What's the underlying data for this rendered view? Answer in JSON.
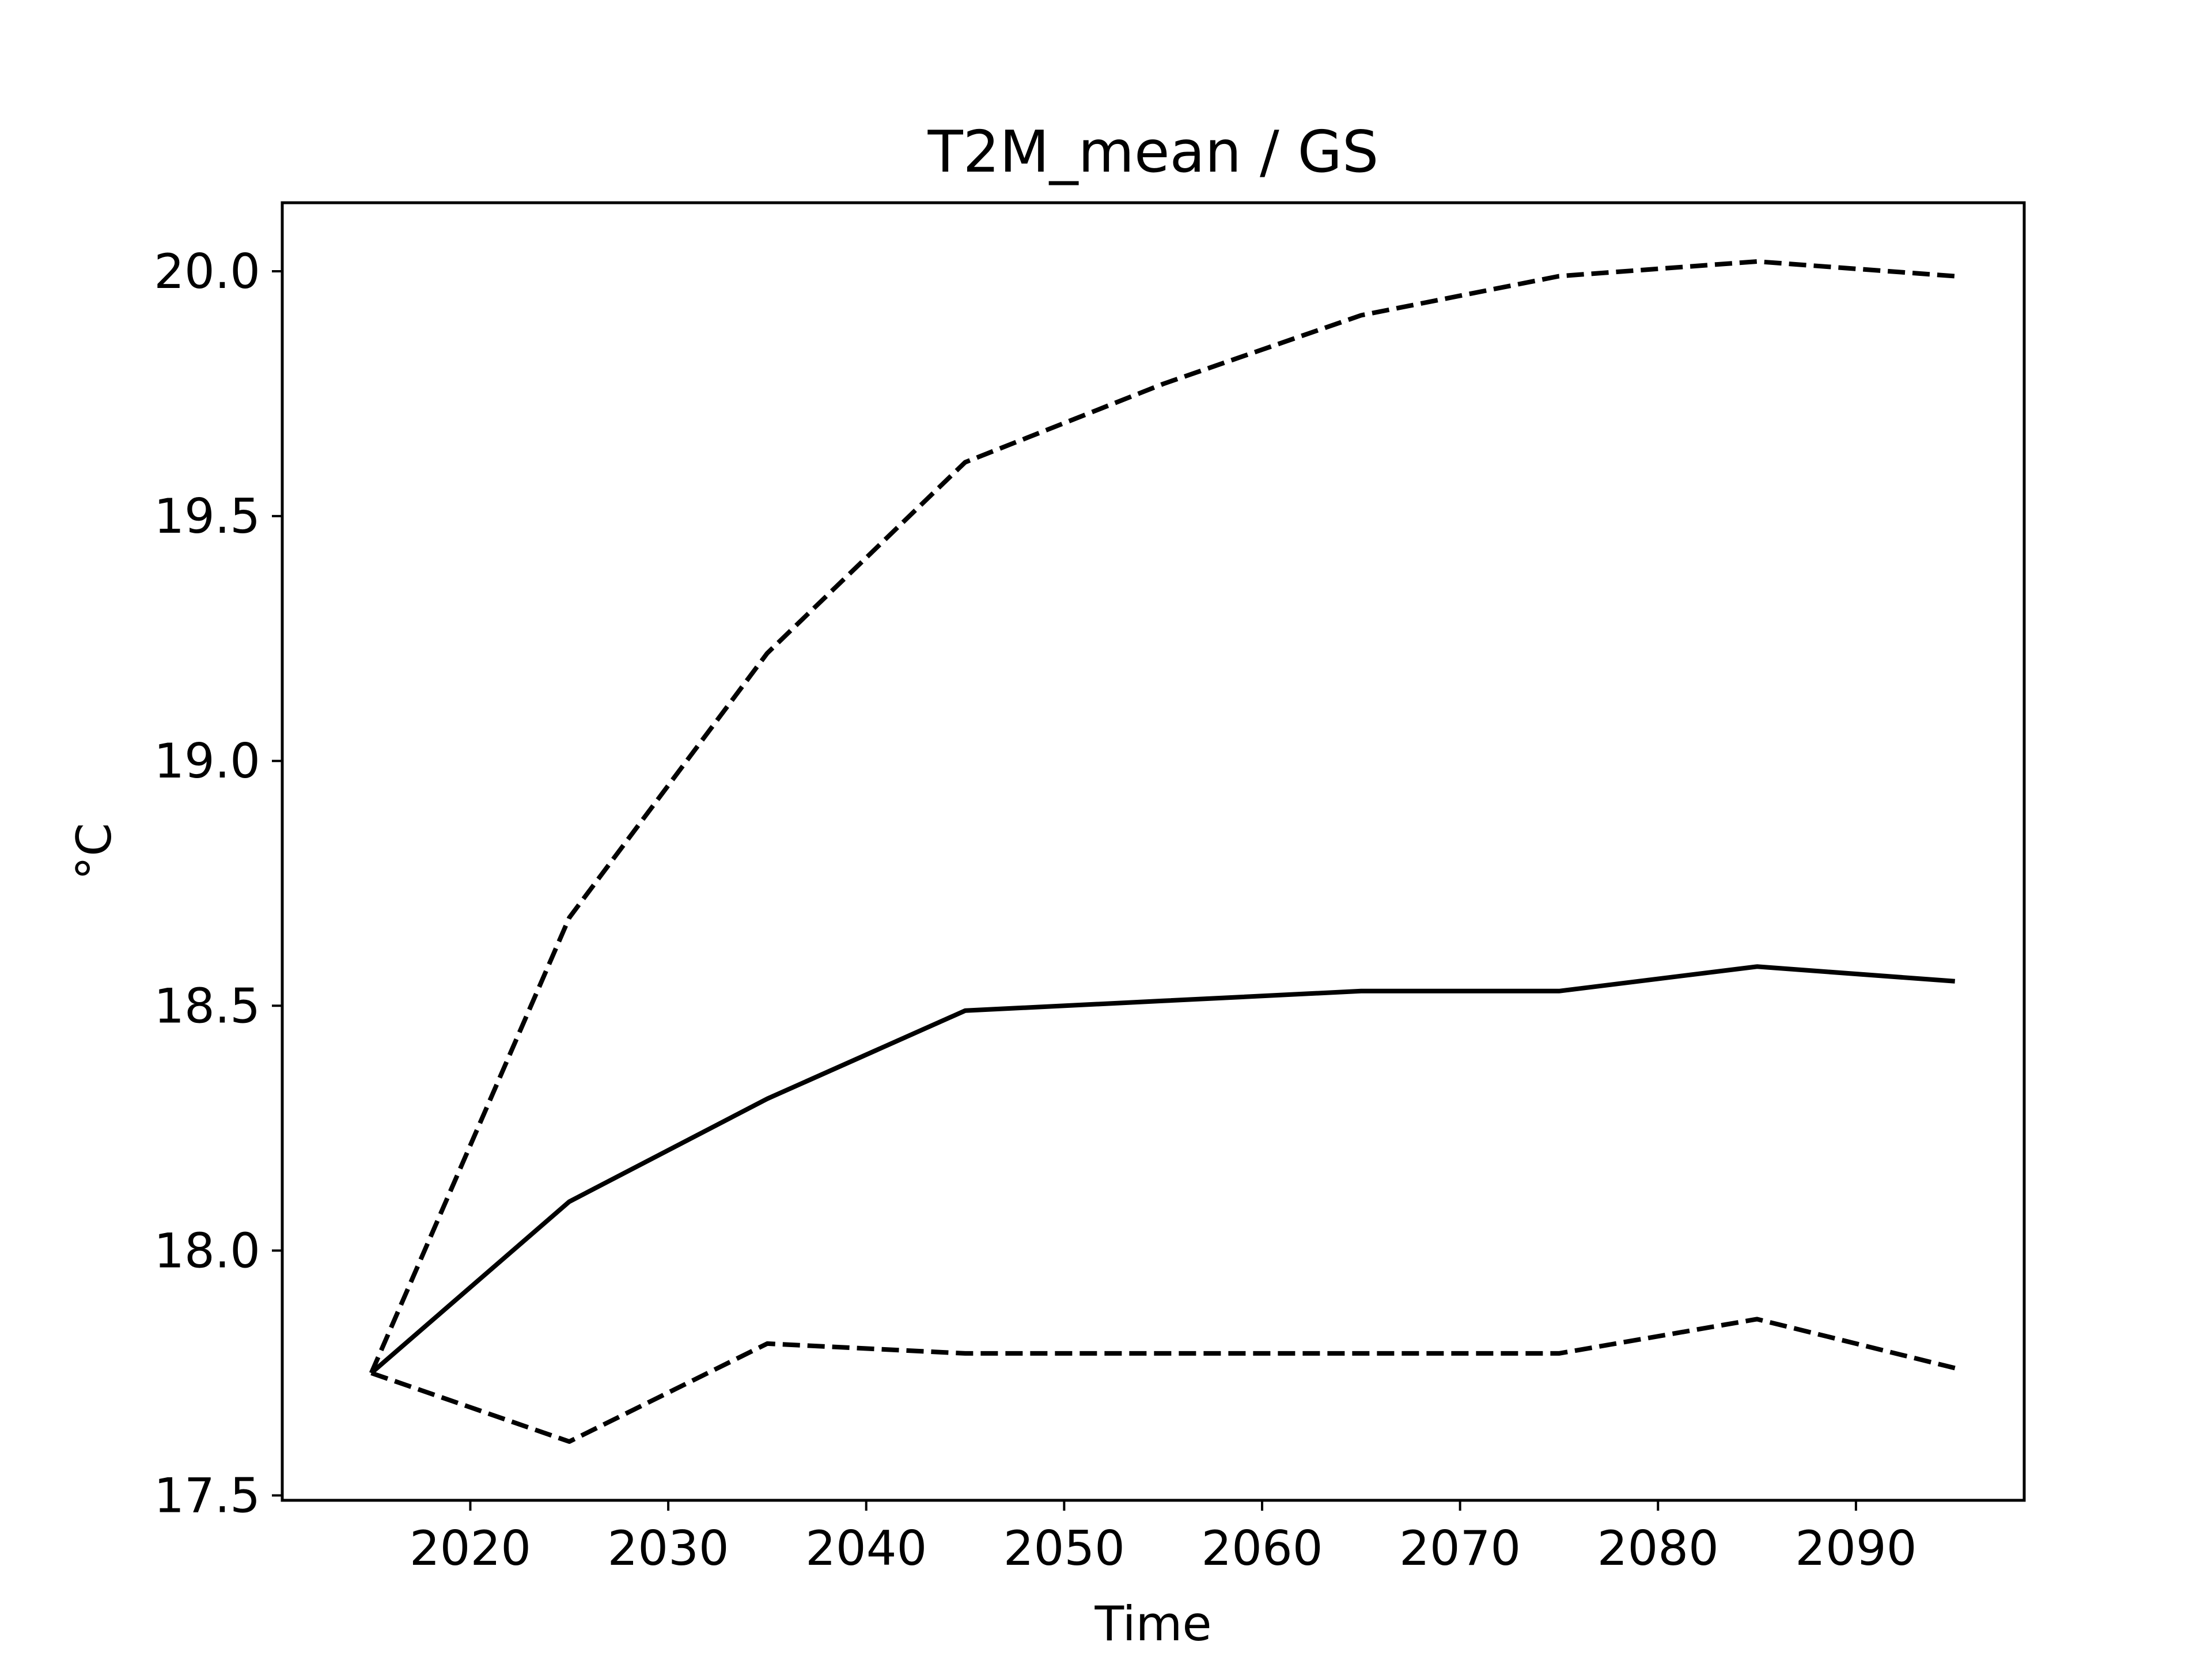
{
  "chart_data": {
    "type": "line",
    "title": "T2M_mean / GS",
    "xlabel": "Time",
    "ylabel": "°C",
    "x": [
      2015,
      2025,
      2035,
      2045,
      2055,
      2065,
      2075,
      2085,
      2095
    ],
    "xlim": [
      2010.5,
      2098.5
    ],
    "ylim": [
      17.49,
      20.14
    ],
    "xticks": [
      2020,
      2030,
      2040,
      2050,
      2060,
      2070,
      2080,
      2090
    ],
    "yticks": [
      17.5,
      18.0,
      18.5,
      19.0,
      19.5,
      20.0
    ],
    "ytick_labels": [
      "17.5",
      "18.0",
      "18.5",
      "19.0",
      "19.5",
      "20.0"
    ],
    "grid": false,
    "legend": "none",
    "colors": {
      "line": "#000000",
      "axes": "#000000",
      "background": "#ffffff"
    },
    "series": [
      {
        "style": "dashed",
        "values": [
          17.75,
          18.68,
          19.22,
          19.61,
          19.77,
          19.91,
          19.99,
          20.02,
          19.99
        ]
      },
      {
        "style": "solid",
        "values": [
          17.75,
          18.1,
          18.31,
          18.49,
          18.51,
          18.53,
          18.53,
          18.58,
          18.55
        ]
      },
      {
        "style": "dashed",
        "values": [
          17.75,
          17.61,
          17.81,
          17.79,
          17.79,
          17.79,
          17.79,
          17.86,
          17.76
        ]
      }
    ]
  }
}
